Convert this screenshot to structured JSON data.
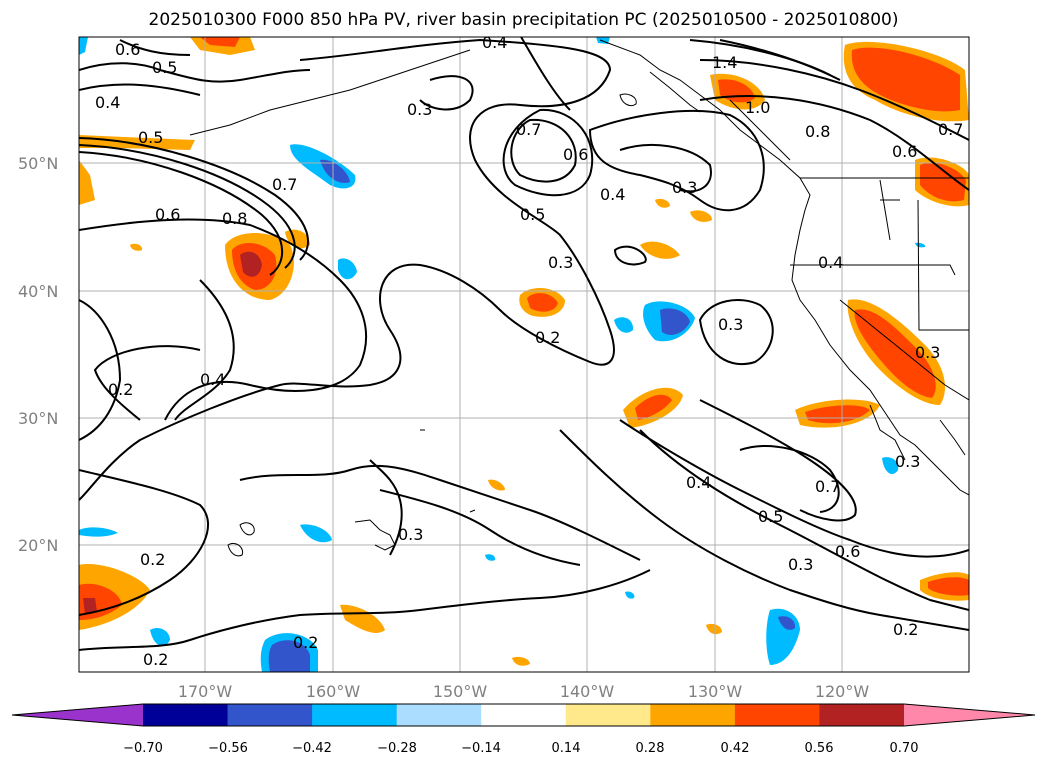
{
  "title": "2025010300 F000 850 hPa PV, river basin precipitation PC (2025010500 - 2025010800)",
  "map": {
    "lat_labels": [
      "50°N",
      "40°N",
      "30°N",
      "20°N"
    ],
    "lon_labels": [
      "170°W",
      "160°W",
      "150°W",
      "140°W",
      "130°W",
      "120°W"
    ],
    "gridlines": true,
    "contour_labels": [
      "0.6",
      "0.5",
      "0.4",
      "0.4",
      "0.3",
      "0.7",
      "0.6",
      "1.4",
      "1.0",
      "0.8",
      "0.6",
      "0.7",
      "0.5",
      "0.7",
      "0.6",
      "0.8",
      "0.4",
      "0.3",
      "0.5",
      "0.3",
      "0.4",
      "0.3",
      "0.2",
      "0.3",
      "0.2",
      "0.4",
      "0.4",
      "0.5",
      "0.7",
      "0.6",
      "0.3",
      "0.3",
      "0.2",
      "0.2",
      "0.2",
      "0.2",
      "0.3"
    ]
  },
  "colorbar": {
    "ticks": [
      "−0.70",
      "−0.56",
      "−0.42",
      "−0.28",
      "−0.14",
      "0.14",
      "0.28",
      "0.42",
      "0.56",
      "0.70"
    ],
    "colors": [
      "#9933cc",
      "#000099",
      "#3355cc",
      "#00bbff",
      "#aaddff",
      "#ffffff",
      "#ffe98a",
      "#ffa500",
      "#ff4500",
      "#b22222",
      "#ff88aa"
    ],
    "extend": "both"
  }
}
